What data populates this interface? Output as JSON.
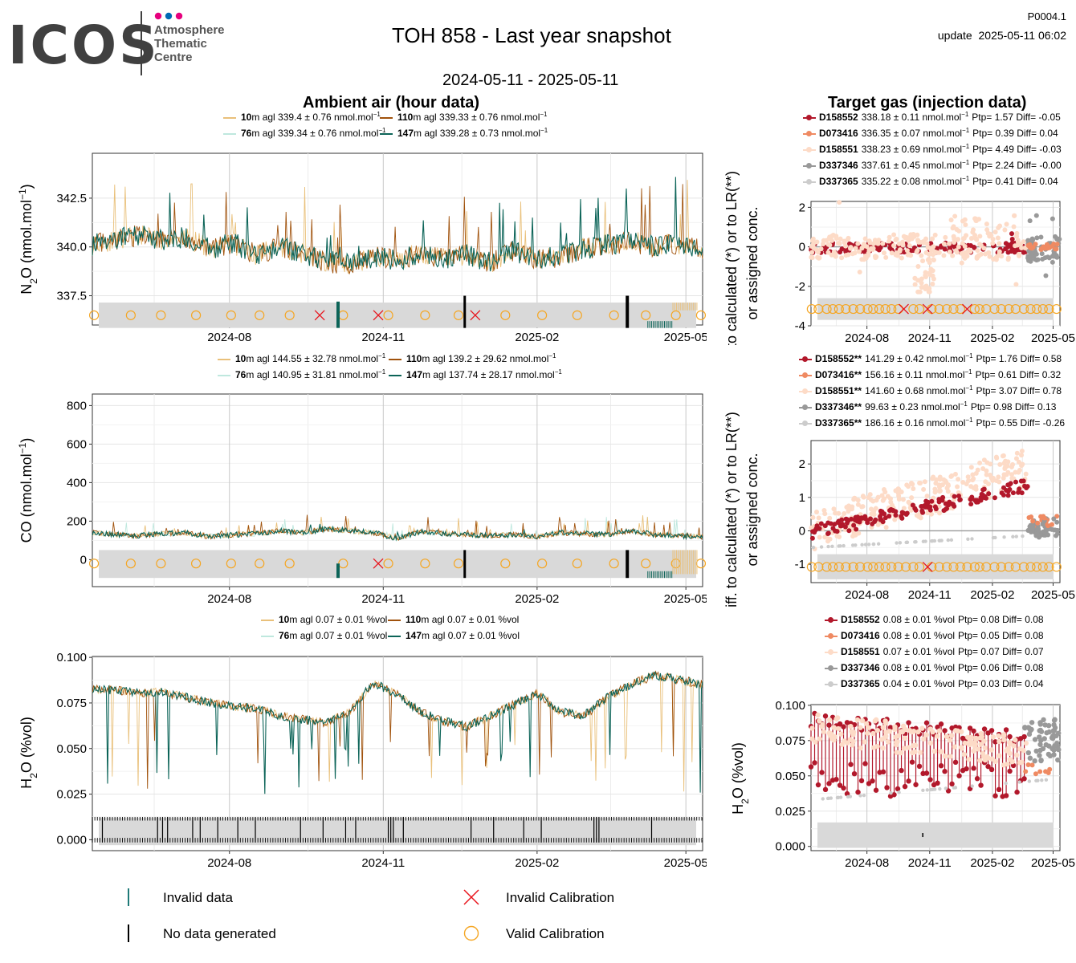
{
  "header": {
    "logo_text": "ICOS",
    "logo_sub": [
      "Atmosphere",
      "Thematic",
      "Centre"
    ],
    "title": "TOH 858 - Last year snapshot",
    "date_range": "2024-05-11 - 2025-05-11",
    "code": "P0004.1",
    "update": "update  2025-05-11 06:02"
  },
  "sections": {
    "ambient": "Ambient air (hour data)",
    "target": "Target gas (injection data)"
  },
  "colors": {
    "lev10": "#e9c07a",
    "lev76": "#bfe8de",
    "lev110": "#a0520c",
    "lev147": "#0c6458",
    "D158552": "#b2182b",
    "D073416": "#ef8a62",
    "D158551": "#fddbc7",
    "D337346": "#999999",
    "D337365": "#cccccc",
    "invalid_cal": "#e8131b",
    "valid_cal": "#f5a623",
    "flag_band": "#d9d9d9"
  },
  "chart_data": [
    {
      "id": "n2o_ambient",
      "type": "line",
      "ylabel": "N2O (nmol.mol-1)",
      "ylim": [
        336.0,
        344.8
      ],
      "yticks": [
        337.5,
        340.0,
        342.5
      ],
      "ytick_labels": [
        "337.5",
        "340.0",
        "342.5"
      ],
      "xlim": [
        "2024-05-11",
        "2025-05-11"
      ],
      "xticks": [
        "2024-08-01",
        "2024-11-01",
        "2025-02-01",
        "2025-05-01"
      ],
      "xtick_labels": [
        "2024-08",
        "2024-11",
        "2025-02",
        "2025-05"
      ],
      "legend": [
        {
          "level": "10",
          "text": "m agl 339.4 ± 0.76 nmol.mol",
          "sup": "−1",
          "color_key": "lev10"
        },
        {
          "level": "110",
          "text": "m agl 339.33 ± 0.76 nmol.mol",
          "sup": "−1",
          "color_key": "lev110"
        },
        {
          "level": "76",
          "text": "m agl 339.34 ± 0.76 nmol.mol",
          "sup": "−1",
          "color_key": "lev76"
        },
        {
          "level": "147",
          "text": "m agl 339.28 ± 0.73 nmol.mol",
          "sup": "−1",
          "color_key": "lev147"
        }
      ],
      "series": [
        {
          "name": "147",
          "color_key": "lev147",
          "dates": [
            "2024-05-11",
            "2024-05-25",
            "2024-06-08",
            "2024-06-22",
            "2024-07-06",
            "2024-07-20",
            "2024-08-03",
            "2024-08-17",
            "2024-08-31",
            "2024-09-14",
            "2024-09-28",
            "2024-10-12",
            "2024-10-26",
            "2024-11-09",
            "2024-11-23",
            "2024-12-07",
            "2024-12-21",
            "2025-01-04",
            "2025-01-18",
            "2025-02-01",
            "2025-02-15",
            "2025-03-01",
            "2025-03-15",
            "2025-03-29",
            "2025-04-12",
            "2025-04-26",
            "2025-05-11"
          ],
          "values": [
            340.1,
            340.4,
            340.6,
            340.3,
            340.5,
            339.9,
            340.2,
            339.6,
            340.0,
            339.7,
            339.2,
            339.1,
            339.5,
            339.3,
            339.7,
            339.4,
            339.6,
            339.2,
            339.8,
            339.4,
            339.5,
            339.9,
            340.1,
            340.3,
            340.0,
            340.2,
            339.9
          ]
        }
      ],
      "calibrations_valid": [
        "2024-05-12",
        "2024-06-03",
        "2024-06-21",
        "2024-07-12",
        "2024-08-02",
        "2024-08-19",
        "2024-09-06",
        "2024-10-08",
        "2024-11-04",
        "2024-11-26",
        "2024-12-16",
        "2025-01-13",
        "2025-02-04",
        "2025-02-25",
        "2025-03-19",
        "2025-04-07",
        "2025-04-25",
        "2025-05-10"
      ],
      "calibrations_invalid": [
        "2024-09-24",
        "2024-11-00",
        "2025-01-01"
      ]
    },
    {
      "id": "co_ambient",
      "type": "line",
      "ylabel": "CO (nmol.mol-1)",
      "ylim": [
        -140,
        860
      ],
      "yticks": [
        0,
        200,
        400,
        600,
        800
      ],
      "ytick_labels": [
        "0",
        "200",
        "400",
        "600",
        "800"
      ],
      "xlim": [
        "2024-05-11",
        "2025-05-11"
      ],
      "xticks": [
        "2024-08-01",
        "2024-11-01",
        "2025-02-01",
        "2025-05-01"
      ],
      "xtick_labels": [
        "2024-08",
        "2024-11",
        "2025-02",
        "2025-05"
      ],
      "legend": [
        {
          "level": "10",
          "text": "m agl 144.55 ± 32.78 nmol.mol",
          "sup": "−1",
          "color_key": "lev10"
        },
        {
          "level": "110",
          "text": "m agl 139.2 ± 29.62 nmol.mol",
          "sup": "−1",
          "color_key": "lev110"
        },
        {
          "level": "76",
          "text": "m agl 140.95 ± 31.81 nmol.mol",
          "sup": "−1",
          "color_key": "lev76"
        },
        {
          "level": "147",
          "text": "m agl 137.74 ± 28.17 nmol.mol",
          "sup": "−1",
          "color_key": "lev147"
        }
      ],
      "series": [
        {
          "name": "147",
          "color_key": "lev147",
          "dates": [
            "2024-05-11",
            "2024-05-25",
            "2024-06-08",
            "2024-06-22",
            "2024-07-06",
            "2024-07-20",
            "2024-08-03",
            "2024-08-17",
            "2024-08-31",
            "2024-09-14",
            "2024-09-28",
            "2024-10-12",
            "2024-10-26",
            "2024-11-09",
            "2024-11-23",
            "2024-12-07",
            "2024-12-21",
            "2025-01-04",
            "2025-01-18",
            "2025-02-01",
            "2025-02-15",
            "2025-03-01",
            "2025-03-15",
            "2025-03-29",
            "2025-04-12",
            "2025-04-26",
            "2025-05-11"
          ],
          "values": [
            140,
            130,
            125,
            135,
            140,
            120,
            130,
            135,
            150,
            140,
            160,
            150,
            140,
            110,
            145,
            135,
            130,
            125,
            130,
            120,
            140,
            135,
            130,
            150,
            130,
            125,
            120
          ]
        }
      ]
    },
    {
      "id": "h2o_ambient",
      "type": "line",
      "ylabel": "H2O (%vol)",
      "ylim": [
        -0.006,
        0.1005
      ],
      "yticks": [
        0.0,
        0.025,
        0.05,
        0.075,
        0.1
      ],
      "ytick_labels": [
        "0.000",
        "0.025",
        "0.050",
        "0.075",
        "0.100"
      ],
      "xlim": [
        "2024-05-11",
        "2025-05-11"
      ],
      "xticks": [
        "2024-08-01",
        "2024-11-01",
        "2025-02-01",
        "2025-05-01"
      ],
      "xtick_labels": [
        "2024-08",
        "2024-11",
        "2025-02",
        "2025-05"
      ],
      "legend": [
        {
          "level": "10",
          "text": "m agl 0.07 ± 0.01 %vol",
          "sup": "",
          "color_key": "lev10"
        },
        {
          "level": "110",
          "text": "m agl 0.07 ± 0.01 %vol",
          "sup": "",
          "color_key": "lev110"
        },
        {
          "level": "76",
          "text": "m agl 0.07 ± 0.01 %vol",
          "sup": "",
          "color_key": "lev76"
        },
        {
          "level": "147",
          "text": "m agl 0.07 ± 0.01 %vol",
          "sup": "",
          "color_key": "lev147"
        }
      ],
      "series": [
        {
          "name": "147",
          "color_key": "lev147",
          "dates": [
            "2024-05-11",
            "2024-05-25",
            "2024-06-08",
            "2024-06-22",
            "2024-07-06",
            "2024-07-20",
            "2024-08-03",
            "2024-08-17",
            "2024-08-31",
            "2024-09-14",
            "2024-09-28",
            "2024-10-12",
            "2024-10-26",
            "2024-11-09",
            "2024-11-23",
            "2024-12-07",
            "2024-12-21",
            "2025-01-04",
            "2025-01-18",
            "2025-02-01",
            "2025-02-15",
            "2025-03-01",
            "2025-03-15",
            "2025-03-29",
            "2025-04-12",
            "2025-04-26",
            "2025-05-11"
          ],
          "values": [
            0.083,
            0.082,
            0.08,
            0.081,
            0.078,
            0.075,
            0.073,
            0.072,
            0.068,
            0.066,
            0.064,
            0.07,
            0.086,
            0.08,
            0.07,
            0.065,
            0.062,
            0.068,
            0.074,
            0.08,
            0.07,
            0.068,
            0.078,
            0.085,
            0.09,
            0.088,
            0.085
          ]
        }
      ]
    },
    {
      "id": "n2o_target",
      "type": "scatter",
      "yaxis_title": ". to calculated (*) or to LR(**) or assigned conc.",
      "ylim": [
        -4,
        2.3
      ],
      "yticks": [
        -4,
        -2,
        0,
        2
      ],
      "ytick_labels": [
        "-4",
        "-2",
        "0",
        "2"
      ],
      "xlim": [
        "2024-05-11",
        "2025-05-11"
      ],
      "xtick_labels": [
        "2024-08",
        "2024-11",
        "2025-02",
        "2025-05"
      ],
      "legend": [
        {
          "cyl": "D158552",
          "text": "338.18 ± 0.11 nmol.mol",
          "sup": "−1",
          "tail": "Ptp= 1.57 Diff= -0.05",
          "color_key": "D158552"
        },
        {
          "cyl": "D073416",
          "text": "336.35 ± 0.07 nmol.mol",
          "sup": "−1",
          "tail": "Ptp= 0.39 Diff= 0.04",
          "color_key": "D073416"
        },
        {
          "cyl": "D158551",
          "text": "338.23 ± 0.69 nmol.mol",
          "sup": "−1",
          "tail": "Ptp= 4.49 Diff= -0.03",
          "color_key": "D158551"
        },
        {
          "cyl": "D337346",
          "text": "337.61 ± 0.45 nmol.mol",
          "sup": "−1",
          "tail": "Ptp= 2.24 Diff= -0.00",
          "color_key": "D337346"
        },
        {
          "cyl": "D337365",
          "text": "335.22 ± 0.08 nmol.mol",
          "sup": "−1",
          "tail": "Ptp= 0.41 Diff= 0.04",
          "color_key": "D337365"
        }
      ]
    },
    {
      "id": "co_target",
      "type": "scatter",
      "yaxis_title": "iff. to calculated (*) or to LR(**) or assigned conc.",
      "ylim": [
        -1.55,
        2.7
      ],
      "yticks": [
        -1,
        0,
        1,
        2
      ],
      "ytick_labels": [
        "-1",
        "0",
        "1",
        "2"
      ],
      "xlim": [
        "2024-05-11",
        "2025-05-11"
      ],
      "xtick_labels": [
        "2024-08",
        "2024-11",
        "2025-02",
        "2025-05"
      ],
      "legend": [
        {
          "cyl": "D158552**",
          "text": "141.29 ± 0.42 nmol.mol",
          "sup": "−1",
          "tail": "Ptp= 1.76 Diff= 0.58",
          "color_key": "D158552"
        },
        {
          "cyl": "D073416**",
          "text": "156.16 ± 0.11 nmol.mol",
          "sup": "−1",
          "tail": "Ptp= 0.61 Diff= 0.32",
          "color_key": "D073416"
        },
        {
          "cyl": "D158551**",
          "text": "141.60 ± 0.68 nmol.mol",
          "sup": "−1",
          "tail": "Ptp= 3.07 Diff= 0.78",
          "color_key": "D158551"
        },
        {
          "cyl": "D337346**",
          "text": "99.63 ± 0.23 nmol.mol",
          "sup": "−1",
          "tail": "Ptp= 0.98 Diff= 0.13",
          "color_key": "D337346"
        },
        {
          "cyl": "D337365**",
          "text": "186.16 ± 0.16 nmol.mol",
          "sup": "−1",
          "tail": "Ptp= 0.55 Diff= -0.26",
          "color_key": "D337365"
        }
      ]
    },
    {
      "id": "h2o_target",
      "type": "scatter",
      "ylabel": "H2O (%vol)",
      "ylim": [
        -0.003,
        0.1005
      ],
      "yticks": [
        0.0,
        0.025,
        0.05,
        0.075,
        0.1
      ],
      "ytick_labels": [
        "0.000",
        "0.025",
        "0.050",
        "0.075",
        "0.100"
      ],
      "xlim": [
        "2024-05-11",
        "2025-05-11"
      ],
      "xtick_labels": [
        "2024-08",
        "2024-11",
        "2025-02",
        "2025-05"
      ],
      "legend": [
        {
          "cyl": "D158552",
          "text": "0.08 ± 0.01 %vol",
          "sup": "",
          "tail": "Ptp= 0.08 Diff= 0.08",
          "color_key": "D158552"
        },
        {
          "cyl": "D073416",
          "text": "0.08 ± 0.01 %vol",
          "sup": "",
          "tail": "Ptp= 0.05 Diff= 0.08",
          "color_key": "D073416"
        },
        {
          "cyl": "D158551",
          "text": "0.07 ± 0.01 %vol",
          "sup": "",
          "tail": "Ptp= 0.07 Diff= 0.07",
          "color_key": "D158551"
        },
        {
          "cyl": "D337346",
          "text": "0.08 ± 0.01 %vol",
          "sup": "",
          "tail": "Ptp= 0.06 Diff= 0.08",
          "color_key": "D337346"
        },
        {
          "cyl": "D337365",
          "text": "0.04 ± 0.01 %vol",
          "sup": "",
          "tail": "Ptp= 0.03 Diff= 0.04",
          "color_key": "D337365"
        }
      ]
    }
  ],
  "bottom_legend": {
    "invalid_data": "Invalid data",
    "no_data": "No data generated",
    "invalid_cal": "Invalid Calibration",
    "valid_cal": "Valid Calibration"
  }
}
